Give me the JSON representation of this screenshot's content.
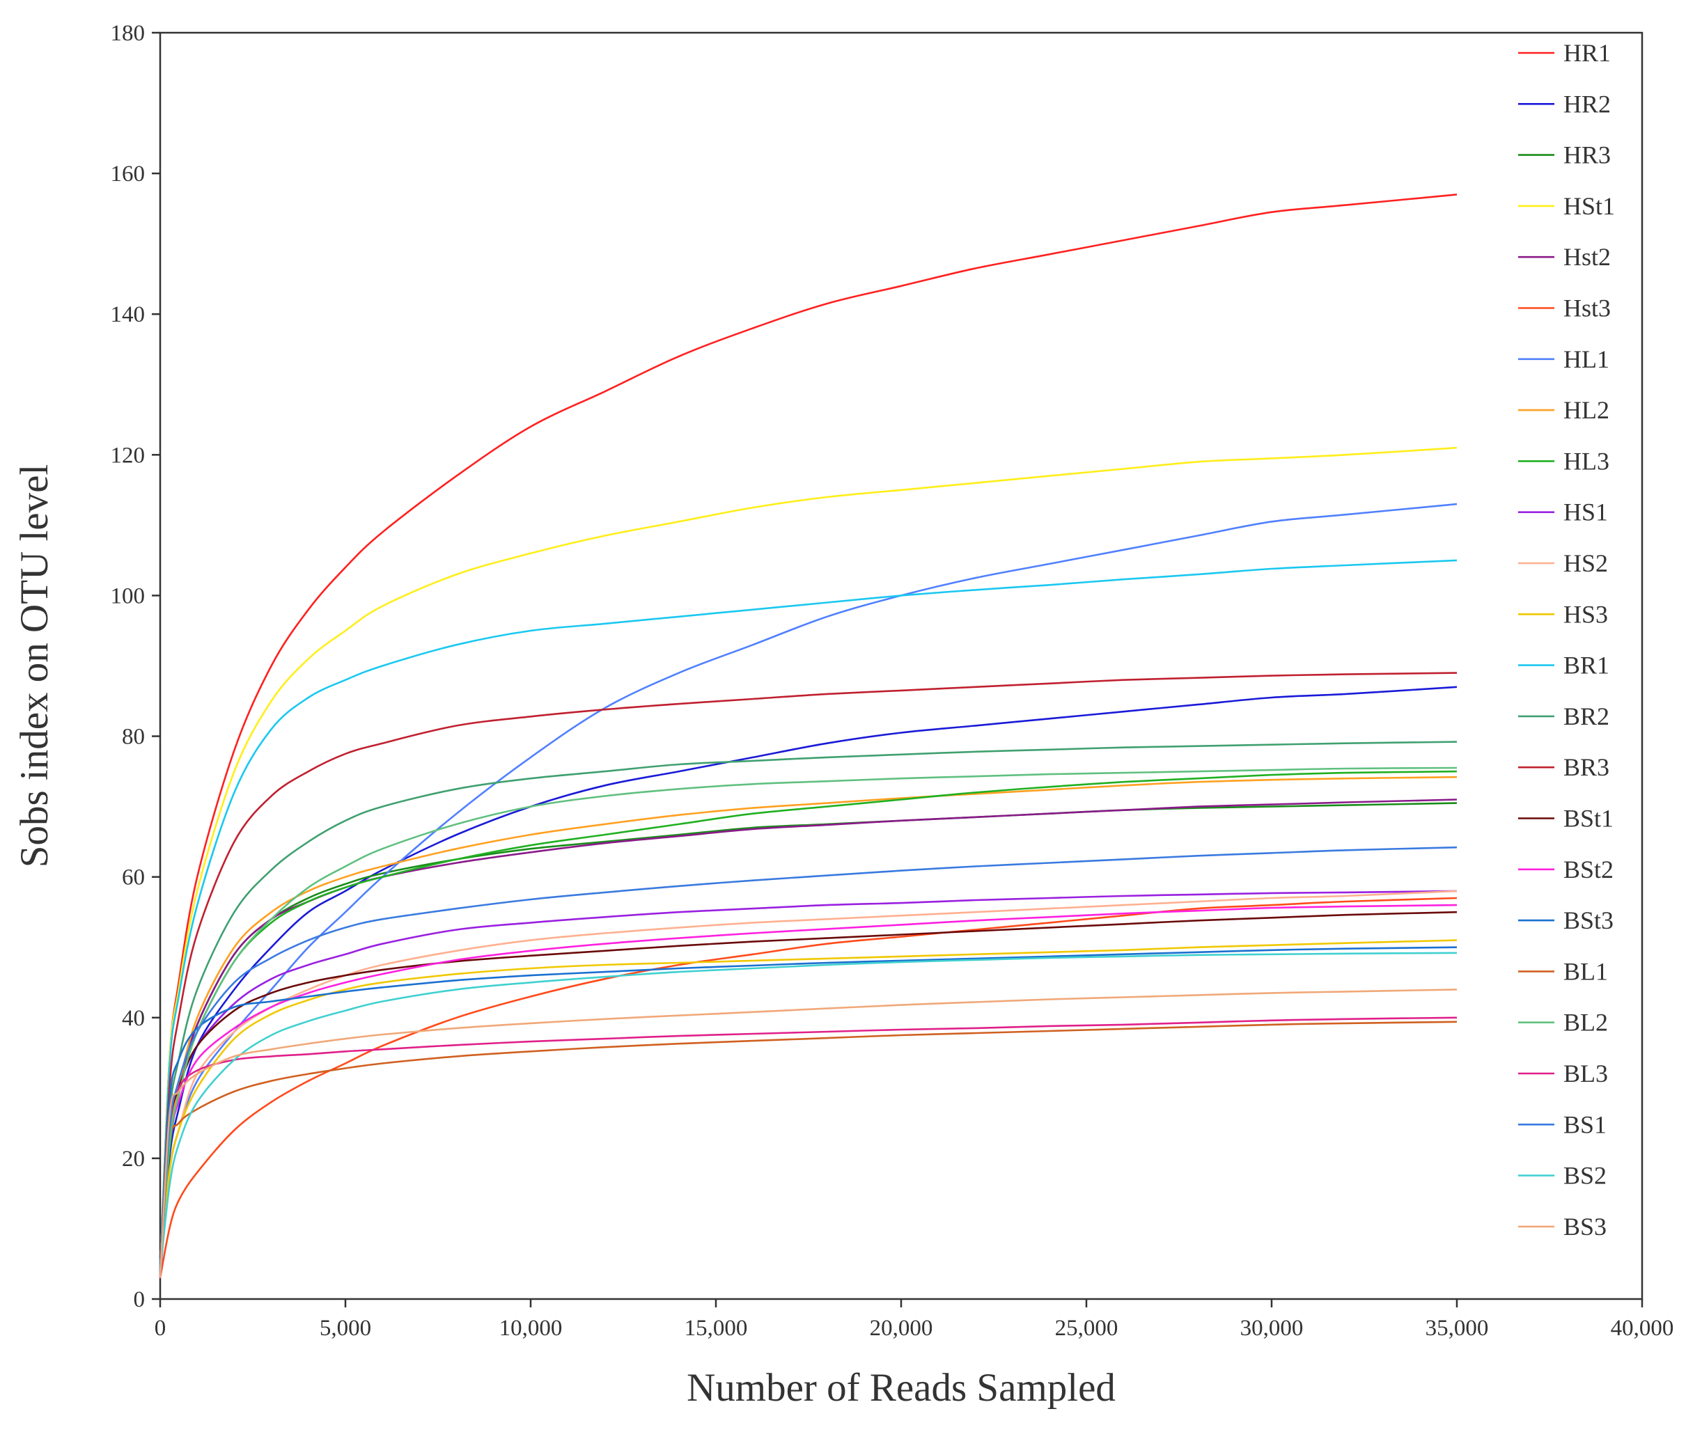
{
  "chart_data": {
    "type": "line",
    "title": "",
    "xlabel": "Number of Reads Sampled",
    "ylabel": "Sobs index on OTU level",
    "xlim": [
      0,
      40000
    ],
    "ylim": [
      0,
      180
    ],
    "x_ticks": [
      0,
      5000,
      10000,
      15000,
      20000,
      25000,
      30000,
      35000,
      40000
    ],
    "x_tick_labels": [
      "0",
      "5,000",
      "10,000",
      "15,000",
      "20,000",
      "25,000",
      "30,000",
      "35,000",
      "40,000"
    ],
    "y_ticks": [
      0,
      20,
      40,
      60,
      80,
      100,
      120,
      140,
      160,
      180
    ],
    "y_tick_labels": [
      "0",
      "20",
      "40",
      "60",
      "80",
      "100",
      "120",
      "140",
      "160",
      "180"
    ],
    "grid": false,
    "legend_position": "right",
    "x": [
      0,
      250,
      500,
      1000,
      2000,
      3000,
      4000,
      5000,
      6000,
      8000,
      10000,
      12000,
      14000,
      16000,
      18000,
      20000,
      22000,
      24000,
      26000,
      28000,
      30000,
      32000,
      35000
    ],
    "series": [
      {
        "name": "HR1",
        "color": "#ff2020",
        "values": [
          4,
          34,
          45,
          60,
          78,
          90,
          98,
          104,
          109,
          117,
          124,
          129,
          134,
          138,
          141.5,
          144,
          146.5,
          148.5,
          150.5,
          152.5,
          154.5,
          155.5,
          157
        ]
      },
      {
        "name": "HR2",
        "color": "#1a1ad8",
        "values": [
          4,
          20,
          27,
          36,
          44,
          50,
          55,
          58,
          61,
          66,
          70,
          73,
          75,
          77,
          79,
          80.5,
          81.5,
          82.5,
          83.5,
          84.5,
          85.5,
          86,
          87
        ]
      },
      {
        "name": "HR3",
        "color": "#1a8c1a",
        "values": [
          4,
          22,
          30,
          39,
          49,
          54,
          57,
          59,
          60.5,
          62.5,
          64,
          65,
          66,
          67,
          67.5,
          68,
          68.5,
          69,
          69.5,
          69.8,
          70,
          70.2,
          70.5
        ]
      },
      {
        "name": "HSt1",
        "color": "#ffee1a",
        "values": [
          4,
          34,
          44,
          58,
          75,
          85,
          91,
          95,
          98.5,
          103,
          106,
          108.5,
          110.5,
          112.5,
          114,
          115,
          116,
          117,
          118,
          119,
          119.5,
          120,
          121
        ]
      },
      {
        "name": "Hst2",
        "color": "#8a1a8a",
        "values": [
          4,
          22,
          30,
          39,
          49,
          54,
          56.5,
          58.5,
          60,
          62,
          63.5,
          64.8,
          65.8,
          66.8,
          67.4,
          68,
          68.5,
          69,
          69.5,
          70,
          70.3,
          70.6,
          71
        ]
      },
      {
        "name": "Hst3",
        "color": "#ff4a1a",
        "values": [
          3,
          10,
          14,
          18,
          24,
          28,
          31,
          33.5,
          36,
          40,
          43,
          45.5,
          47.5,
          49,
          50.5,
          51.5,
          52.5,
          53.5,
          54.5,
          55.5,
          56,
          56.5,
          57
        ]
      },
      {
        "name": "HL1",
        "color": "#5080ff",
        "values": [
          3,
          18,
          24,
          31,
          38,
          44,
          50,
          55,
          60,
          69,
          77,
          84,
          89,
          93,
          97,
          100,
          102.5,
          104.5,
          106.5,
          108.5,
          110.5,
          111.5,
          113
        ]
      },
      {
        "name": "HL2",
        "color": "#ffa020",
        "values": [
          4,
          22,
          30,
          40,
          50,
          55,
          58,
          60,
          61.5,
          64,
          66,
          67.5,
          68.8,
          69.8,
          70.5,
          71.2,
          71.8,
          72.4,
          73,
          73.5,
          73.8,
          74,
          74.2
        ]
      },
      {
        "name": "HL3",
        "color": "#20b020",
        "values": [
          4,
          21,
          29,
          38,
          48,
          53.5,
          56.5,
          58.5,
          60,
          62.5,
          64.5,
          66,
          67.5,
          69,
          70,
          71,
          72,
          72.8,
          73.5,
          74,
          74.5,
          74.8,
          75
        ]
      },
      {
        "name": "HS1",
        "color": "#9a20e0",
        "values": [
          4,
          24,
          30,
          36,
          42,
          45.5,
          47.5,
          49,
          50.5,
          52.5,
          53.5,
          54.3,
          55,
          55.5,
          56,
          56.3,
          56.7,
          57,
          57.3,
          57.5,
          57.7,
          57.8,
          58
        ]
      },
      {
        "name": "HS2",
        "color": "#ffb090",
        "values": [
          4,
          18,
          24,
          32,
          38,
          41.5,
          44,
          46,
          47.5,
          49.5,
          51,
          52,
          52.8,
          53.5,
          54,
          54.5,
          55,
          55.5,
          56,
          56.5,
          57,
          57.3,
          58
        ]
      },
      {
        "name": "HS3",
        "color": "#f0c800",
        "values": [
          4,
          18,
          24,
          30,
          37,
          40.5,
          42.5,
          44,
          45,
          46.2,
          47,
          47.5,
          47.8,
          48.1,
          48.4,
          48.7,
          49,
          49.3,
          49.6,
          50,
          50.3,
          50.6,
          51
        ]
      },
      {
        "name": "BR1",
        "color": "#1ac8f0",
        "values": [
          4,
          33,
          43,
          56,
          72,
          81,
          85.5,
          88,
          90,
          93,
          95,
          96,
          97,
          98,
          99,
          100,
          100.8,
          101.5,
          102.3,
          103,
          103.8,
          104.3,
          105
        ]
      },
      {
        "name": "BR2",
        "color": "#40a070",
        "values": [
          4,
          26,
          34,
          44,
          55,
          61,
          65,
          68,
          70,
          72.5,
          74,
          75,
          76,
          76.5,
          77,
          77.4,
          77.8,
          78.1,
          78.4,
          78.6,
          78.8,
          79,
          79.2
        ]
      },
      {
        "name": "BR3",
        "color": "#c02030",
        "values": [
          4,
          30,
          40,
          52,
          65,
          71.5,
          75,
          77.5,
          79,
          81.5,
          82.8,
          83.8,
          84.6,
          85.3,
          86,
          86.5,
          87,
          87.5,
          88,
          88.3,
          88.6,
          88.8,
          89
        ]
      },
      {
        "name": "BSt1",
        "color": "#6a0a0a",
        "values": [
          4,
          24,
          30,
          36,
          41,
          43.5,
          45,
          46,
          46.8,
          48,
          48.8,
          49.5,
          50.2,
          50.8,
          51.3,
          51.8,
          52.3,
          52.8,
          53.3,
          53.8,
          54.2,
          54.6,
          55
        ]
      },
      {
        "name": "BSt2",
        "color": "#ff20e0",
        "values": [
          4,
          22,
          28,
          34,
          38.5,
          41.5,
          43.5,
          45,
          46.2,
          48.2,
          49.5,
          50.5,
          51.3,
          52,
          52.6,
          53.2,
          53.8,
          54.3,
          54.8,
          55.2,
          55.6,
          55.8,
          56
        ]
      },
      {
        "name": "BSt3",
        "color": "#1a70d0",
        "values": [
          4,
          28,
          34,
          38.5,
          41.5,
          42.3,
          43,
          43.7,
          44.3,
          45.3,
          46,
          46.5,
          47,
          47.4,
          47.8,
          48.1,
          48.4,
          48.7,
          49,
          49.3,
          49.6,
          49.8,
          50
        ]
      },
      {
        "name": "BL1",
        "color": "#d06020",
        "values": [
          4,
          22,
          25,
          27,
          29.5,
          31,
          32,
          32.8,
          33.5,
          34.5,
          35.2,
          35.8,
          36.3,
          36.7,
          37.1,
          37.5,
          37.8,
          38.1,
          38.4,
          38.7,
          39,
          39.2,
          39.4
        ]
      },
      {
        "name": "BL2",
        "color": "#60c080",
        "values": [
          4,
          22,
          29,
          38,
          48,
          54,
          58.5,
          61.5,
          64,
          67.5,
          70,
          71.5,
          72.5,
          73.2,
          73.6,
          74,
          74.3,
          74.6,
          74.8,
          75,
          75.2,
          75.4,
          75.5
        ]
      },
      {
        "name": "BL3",
        "color": "#e0208a",
        "values": [
          3,
          25,
          30,
          32.5,
          34,
          34.5,
          34.8,
          35.2,
          35.5,
          36.1,
          36.6,
          37,
          37.4,
          37.7,
          38,
          38.3,
          38.5,
          38.8,
          39,
          39.3,
          39.6,
          39.8,
          40
        ]
      },
      {
        "name": "BS1",
        "color": "#3a7ae0",
        "values": [
          4,
          24,
          31,
          38,
          45,
          48.5,
          51,
          52.8,
          54,
          55.5,
          56.8,
          57.8,
          58.7,
          59.5,
          60.2,
          60.9,
          61.5,
          62,
          62.5,
          63,
          63.4,
          63.8,
          64.2
        ]
      },
      {
        "name": "BS2",
        "color": "#40d0d0",
        "values": [
          4,
          16,
          22,
          28,
          34,
          37.5,
          39.5,
          41,
          42.3,
          44,
          45,
          45.8,
          46.5,
          47,
          47.5,
          47.9,
          48.2,
          48.5,
          48.7,
          48.9,
          49,
          49.1,
          49.2
        ]
      },
      {
        "name": "BS3",
        "color": "#f0a878",
        "values": [
          3,
          26,
          29.5,
          32,
          34.5,
          35.5,
          36.3,
          37,
          37.6,
          38.5,
          39.2,
          39.8,
          40.3,
          40.8,
          41.3,
          41.8,
          42.2,
          42.6,
          42.9,
          43.2,
          43.5,
          43.7,
          44
        ]
      }
    ]
  }
}
